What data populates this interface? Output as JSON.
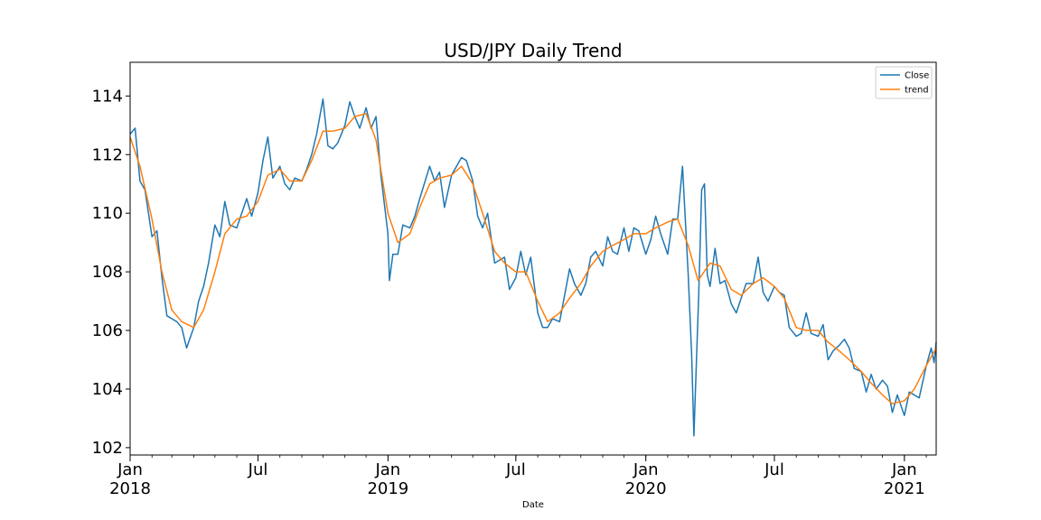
{
  "chart_data": {
    "type": "line",
    "title": "USD/JPY Daily Trend",
    "xlabel": "Date",
    "ylabel": "",
    "xlim": [
      "2018-01-01",
      "2021-02-15"
    ],
    "ylim": [
      101.75,
      115.15
    ],
    "grid": false,
    "legend_position": "top-right",
    "y_ticks": [
      102,
      104,
      106,
      108,
      110,
      112,
      114
    ],
    "x_ticks": [
      {
        "date": "2018-01-01",
        "label": "Jan",
        "year": "2018"
      },
      {
        "date": "2018-07-01",
        "label": "Jul",
        "year": ""
      },
      {
        "date": "2019-01-01",
        "label": "Jan",
        "year": "2019"
      },
      {
        "date": "2019-07-01",
        "label": "Jul",
        "year": ""
      },
      {
        "date": "2020-01-01",
        "label": "Jan",
        "year": "2020"
      },
      {
        "date": "2020-07-01",
        "label": "Jul",
        "year": ""
      },
      {
        "date": "2021-01-01",
        "label": "Jan",
        "year": "2021"
      }
    ],
    "series": [
      {
        "name": "Close",
        "color": "#1f77b4",
        "points": [
          [
            "2018-01-01",
            112.7
          ],
          [
            "2018-01-08",
            112.9
          ],
          [
            "2018-01-15",
            111.1
          ],
          [
            "2018-01-22",
            110.8
          ],
          [
            "2018-02-01",
            109.2
          ],
          [
            "2018-02-08",
            109.4
          ],
          [
            "2018-02-15",
            107.8
          ],
          [
            "2018-02-22",
            106.5
          ],
          [
            "2018-03-01",
            106.4
          ],
          [
            "2018-03-08",
            106.3
          ],
          [
            "2018-03-15",
            106.1
          ],
          [
            "2018-03-22",
            105.4
          ],
          [
            "2018-04-01",
            106.1
          ],
          [
            "2018-04-08",
            107.0
          ],
          [
            "2018-04-15",
            107.5
          ],
          [
            "2018-04-22",
            108.3
          ],
          [
            "2018-05-01",
            109.6
          ],
          [
            "2018-05-08",
            109.2
          ],
          [
            "2018-05-15",
            110.4
          ],
          [
            "2018-05-22",
            109.6
          ],
          [
            "2018-06-01",
            109.5
          ],
          [
            "2018-06-08",
            110.0
          ],
          [
            "2018-06-15",
            110.5
          ],
          [
            "2018-06-22",
            109.9
          ],
          [
            "2018-07-01",
            110.7
          ],
          [
            "2018-07-08",
            111.8
          ],
          [
            "2018-07-15",
            112.6
          ],
          [
            "2018-07-22",
            111.2
          ],
          [
            "2018-08-01",
            111.6
          ],
          [
            "2018-08-08",
            111.0
          ],
          [
            "2018-08-15",
            110.8
          ],
          [
            "2018-08-22",
            111.2
          ],
          [
            "2018-09-01",
            111.1
          ],
          [
            "2018-09-08",
            111.5
          ],
          [
            "2018-09-15",
            112.0
          ],
          [
            "2018-09-22",
            112.7
          ],
          [
            "2018-10-01",
            113.9
          ],
          [
            "2018-10-08",
            112.3
          ],
          [
            "2018-10-15",
            112.2
          ],
          [
            "2018-10-22",
            112.4
          ],
          [
            "2018-11-01",
            113.0
          ],
          [
            "2018-11-08",
            113.8
          ],
          [
            "2018-11-15",
            113.3
          ],
          [
            "2018-11-22",
            112.9
          ],
          [
            "2018-12-01",
            113.6
          ],
          [
            "2018-12-08",
            112.9
          ],
          [
            "2018-12-15",
            113.3
          ],
          [
            "2018-12-22",
            111.3
          ],
          [
            "2019-01-01",
            109.3
          ],
          [
            "2019-01-03",
            107.7
          ],
          [
            "2019-01-08",
            108.6
          ],
          [
            "2019-01-15",
            108.6
          ],
          [
            "2019-01-22",
            109.6
          ],
          [
            "2019-02-01",
            109.5
          ],
          [
            "2019-02-08",
            109.9
          ],
          [
            "2019-02-15",
            110.5
          ],
          [
            "2019-03-01",
            111.6
          ],
          [
            "2019-03-08",
            111.1
          ],
          [
            "2019-03-15",
            111.4
          ],
          [
            "2019-03-22",
            110.2
          ],
          [
            "2019-04-01",
            111.3
          ],
          [
            "2019-04-08",
            111.6
          ],
          [
            "2019-04-15",
            111.9
          ],
          [
            "2019-04-22",
            111.8
          ],
          [
            "2019-05-01",
            111.1
          ],
          [
            "2019-05-08",
            109.9
          ],
          [
            "2019-05-15",
            109.5
          ],
          [
            "2019-05-22",
            110.0
          ],
          [
            "2019-06-01",
            108.3
          ],
          [
            "2019-06-08",
            108.4
          ],
          [
            "2019-06-15",
            108.5
          ],
          [
            "2019-06-22",
            107.4
          ],
          [
            "2019-07-01",
            107.8
          ],
          [
            "2019-07-08",
            108.7
          ],
          [
            "2019-07-15",
            107.9
          ],
          [
            "2019-07-22",
            108.5
          ],
          [
            "2019-08-01",
            106.6
          ],
          [
            "2019-08-08",
            106.1
          ],
          [
            "2019-08-15",
            106.1
          ],
          [
            "2019-08-22",
            106.4
          ],
          [
            "2019-09-01",
            106.3
          ],
          [
            "2019-09-08",
            107.2
          ],
          [
            "2019-09-15",
            108.1
          ],
          [
            "2019-09-22",
            107.6
          ],
          [
            "2019-10-01",
            107.2
          ],
          [
            "2019-10-08",
            107.6
          ],
          [
            "2019-10-15",
            108.5
          ],
          [
            "2019-10-22",
            108.7
          ],
          [
            "2019-11-01",
            108.2
          ],
          [
            "2019-11-08",
            109.2
          ],
          [
            "2019-11-15",
            108.7
          ],
          [
            "2019-11-22",
            108.6
          ],
          [
            "2019-12-01",
            109.5
          ],
          [
            "2019-12-08",
            108.7
          ],
          [
            "2019-12-15",
            109.5
          ],
          [
            "2019-12-22",
            109.4
          ],
          [
            "2020-01-01",
            108.6
          ],
          [
            "2020-01-08",
            109.1
          ],
          [
            "2020-01-15",
            109.9
          ],
          [
            "2020-01-22",
            109.3
          ],
          [
            "2020-02-01",
            108.6
          ],
          [
            "2020-02-08",
            109.8
          ],
          [
            "2020-02-15",
            109.8
          ],
          [
            "2020-02-22",
            111.6
          ],
          [
            "2020-03-01",
            107.9
          ],
          [
            "2020-03-06",
            105.1
          ],
          [
            "2020-03-09",
            102.4
          ],
          [
            "2020-03-12",
            104.5
          ],
          [
            "2020-03-16",
            107.3
          ],
          [
            "2020-03-20",
            110.8
          ],
          [
            "2020-03-24",
            111.0
          ],
          [
            "2020-03-28",
            107.9
          ],
          [
            "2020-04-01",
            107.5
          ],
          [
            "2020-04-08",
            108.8
          ],
          [
            "2020-04-15",
            107.6
          ],
          [
            "2020-04-22",
            107.7
          ],
          [
            "2020-05-01",
            106.9
          ],
          [
            "2020-05-08",
            106.6
          ],
          [
            "2020-05-15",
            107.1
          ],
          [
            "2020-05-22",
            107.6
          ],
          [
            "2020-06-01",
            107.6
          ],
          [
            "2020-06-08",
            108.5
          ],
          [
            "2020-06-15",
            107.3
          ],
          [
            "2020-06-22",
            107.0
          ],
          [
            "2020-07-01",
            107.5
          ],
          [
            "2020-07-08",
            107.3
          ],
          [
            "2020-07-15",
            107.2
          ],
          [
            "2020-07-22",
            106.1
          ],
          [
            "2020-08-01",
            105.8
          ],
          [
            "2020-08-08",
            105.9
          ],
          [
            "2020-08-15",
            106.6
          ],
          [
            "2020-08-22",
            105.9
          ],
          [
            "2020-09-01",
            105.8
          ],
          [
            "2020-09-08",
            106.2
          ],
          [
            "2020-09-15",
            105.0
          ],
          [
            "2020-09-22",
            105.3
          ],
          [
            "2020-10-01",
            105.5
          ],
          [
            "2020-10-08",
            105.7
          ],
          [
            "2020-10-15",
            105.4
          ],
          [
            "2020-10-22",
            104.7
          ],
          [
            "2020-11-01",
            104.6
          ],
          [
            "2020-11-08",
            103.9
          ],
          [
            "2020-11-15",
            104.5
          ],
          [
            "2020-11-22",
            104.0
          ],
          [
            "2020-12-01",
            104.3
          ],
          [
            "2020-12-08",
            104.1
          ],
          [
            "2020-12-15",
            103.2
          ],
          [
            "2020-12-22",
            103.8
          ],
          [
            "2021-01-01",
            103.1
          ],
          [
            "2021-01-08",
            103.9
          ],
          [
            "2021-01-15",
            103.8
          ],
          [
            "2021-01-22",
            103.7
          ],
          [
            "2021-02-01",
            104.8
          ],
          [
            "2021-02-08",
            105.4
          ],
          [
            "2021-02-12",
            104.9
          ],
          [
            "2021-02-15",
            105.6
          ]
        ]
      },
      {
        "name": "trend",
        "color": "#ff7f0e",
        "points": [
          [
            "2018-01-01",
            112.6
          ],
          [
            "2018-01-15",
            111.6
          ],
          [
            "2018-02-01",
            109.8
          ],
          [
            "2018-02-15",
            108.0
          ],
          [
            "2018-03-01",
            106.7
          ],
          [
            "2018-03-15",
            106.3
          ],
          [
            "2018-04-01",
            106.1
          ],
          [
            "2018-04-15",
            106.7
          ],
          [
            "2018-05-01",
            108.0
          ],
          [
            "2018-05-15",
            109.3
          ],
          [
            "2018-06-01",
            109.8
          ],
          [
            "2018-06-15",
            109.9
          ],
          [
            "2018-07-01",
            110.4
          ],
          [
            "2018-07-15",
            111.3
          ],
          [
            "2018-08-01",
            111.5
          ],
          [
            "2018-08-15",
            111.1
          ],
          [
            "2018-09-01",
            111.1
          ],
          [
            "2018-09-15",
            111.8
          ],
          [
            "2018-10-01",
            112.8
          ],
          [
            "2018-10-15",
            112.8
          ],
          [
            "2018-11-01",
            112.9
          ],
          [
            "2018-11-15",
            113.3
          ],
          [
            "2018-12-01",
            113.4
          ],
          [
            "2018-12-15",
            112.5
          ],
          [
            "2019-01-01",
            110.0
          ],
          [
            "2019-01-15",
            109.0
          ],
          [
            "2019-02-01",
            109.3
          ],
          [
            "2019-02-15",
            110.2
          ],
          [
            "2019-03-01",
            111.0
          ],
          [
            "2019-03-15",
            111.2
          ],
          [
            "2019-04-01",
            111.3
          ],
          [
            "2019-04-15",
            111.6
          ],
          [
            "2019-05-01",
            111.0
          ],
          [
            "2019-05-15",
            110.0
          ],
          [
            "2019-06-01",
            108.7
          ],
          [
            "2019-06-15",
            108.3
          ],
          [
            "2019-07-01",
            108.0
          ],
          [
            "2019-07-15",
            108.0
          ],
          [
            "2019-08-01",
            107.0
          ],
          [
            "2019-08-15",
            106.3
          ],
          [
            "2019-09-01",
            106.6
          ],
          [
            "2019-09-15",
            107.1
          ],
          [
            "2019-10-01",
            107.6
          ],
          [
            "2019-10-15",
            108.2
          ],
          [
            "2019-11-01",
            108.7
          ],
          [
            "2019-11-15",
            108.9
          ],
          [
            "2019-12-01",
            109.1
          ],
          [
            "2019-12-15",
            109.3
          ],
          [
            "2020-01-01",
            109.3
          ],
          [
            "2020-01-15",
            109.5
          ],
          [
            "2020-02-01",
            109.7
          ],
          [
            "2020-02-15",
            109.8
          ],
          [
            "2020-03-01",
            108.9
          ],
          [
            "2020-03-15",
            107.7
          ],
          [
            "2020-04-01",
            108.3
          ],
          [
            "2020-04-15",
            108.2
          ],
          [
            "2020-05-01",
            107.4
          ],
          [
            "2020-05-15",
            107.2
          ],
          [
            "2020-06-01",
            107.6
          ],
          [
            "2020-06-15",
            107.8
          ],
          [
            "2020-07-01",
            107.5
          ],
          [
            "2020-07-15",
            107.1
          ],
          [
            "2020-08-01",
            106.1
          ],
          [
            "2020-08-15",
            106.0
          ],
          [
            "2020-09-01",
            106.0
          ],
          [
            "2020-09-15",
            105.6
          ],
          [
            "2020-10-01",
            105.3
          ],
          [
            "2020-10-15",
            105.0
          ],
          [
            "2020-11-01",
            104.6
          ],
          [
            "2020-11-15",
            104.2
          ],
          [
            "2020-12-01",
            103.8
          ],
          [
            "2020-12-15",
            103.5
          ],
          [
            "2021-01-01",
            103.6
          ],
          [
            "2021-01-15",
            104.0
          ],
          [
            "2021-02-01",
            104.8
          ],
          [
            "2021-02-15",
            105.4
          ]
        ]
      }
    ]
  }
}
